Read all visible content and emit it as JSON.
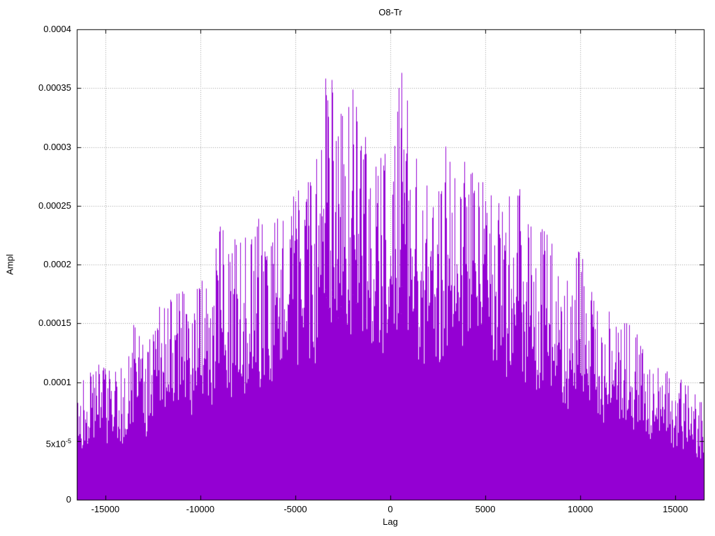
{
  "chart_data": {
    "type": "bar",
    "subtype": "impulses",
    "title": "O8-Tr",
    "xlabel": "Lag",
    "ylabel": "Ampl",
    "xlim": [
      -16500,
      16500
    ],
    "ylim": [
      0,
      0.0004
    ],
    "grid": true,
    "legend": "none",
    "line_color": "#9400D3",
    "grid_color": "#9e9e9e",
    "x_ticks": [
      {
        "value": -15000,
        "label": "-15000"
      },
      {
        "value": -10000,
        "label": "-10000"
      },
      {
        "value": -5000,
        "label": "-5000"
      },
      {
        "value": 0,
        "label": "0"
      },
      {
        "value": 5000,
        "label": "5000"
      },
      {
        "value": 10000,
        "label": "10000"
      },
      {
        "value": 15000,
        "label": "15000"
      }
    ],
    "y_ticks": [
      {
        "value": 0,
        "label": "0"
      },
      {
        "value": 5e-05,
        "label": "5x10",
        "sup": "-5"
      },
      {
        "value": 0.0001,
        "label": "0.0001"
      },
      {
        "value": 0.00015,
        "label": "0.00015"
      },
      {
        "value": 0.0002,
        "label": "0.0002"
      },
      {
        "value": 0.00025,
        "label": "0.00025"
      },
      {
        "value": 0.0003,
        "label": "0.0003"
      },
      {
        "value": 0.00035,
        "label": "0.00035"
      },
      {
        "value": 0.0004,
        "label": "0.0004"
      }
    ],
    "peak": {
      "lag": -3500,
      "ampl": 0.00039
    },
    "envelope": [
      [
        -16500,
        9.5e-05
      ],
      [
        -16000,
        0.000105
      ],
      [
        -15500,
        0.00012
      ],
      [
        -15000,
        0.000115
      ],
      [
        -14500,
        0.00011
      ],
      [
        -14000,
        0.00012
      ],
      [
        -13500,
        0.00015
      ],
      [
        -13000,
        0.00013
      ],
      [
        -12500,
        0.00014
      ],
      [
        -12000,
        0.00018
      ],
      [
        -11500,
        0.00017
      ],
      [
        -11000,
        0.00018
      ],
      [
        -10500,
        0.00016
      ],
      [
        -10000,
        0.00019
      ],
      [
        -9500,
        0.00018
      ],
      [
        -9000,
        0.00024
      ],
      [
        -8500,
        0.00021
      ],
      [
        -8000,
        0.00023
      ],
      [
        -7500,
        0.00022
      ],
      [
        -7000,
        0.00024
      ],
      [
        -6500,
        0.00023
      ],
      [
        -6000,
        0.00026
      ],
      [
        -5500,
        0.00025
      ],
      [
        -5000,
        0.00026
      ],
      [
        -4500,
        0.00027
      ],
      [
        -4000,
        0.00027
      ],
      [
        -3500,
        0.00039
      ],
      [
        -3000,
        0.00035
      ],
      [
        -2500,
        0.00035
      ],
      [
        -2000,
        0.00035
      ],
      [
        -1500,
        0.00031
      ],
      [
        -1000,
        0.00031
      ],
      [
        -500,
        0.00029
      ],
      [
        0,
        0.0003
      ],
      [
        500,
        0.00037
      ],
      [
        1000,
        0.00033
      ],
      [
        1500,
        0.00028
      ],
      [
        2000,
        0.00027
      ],
      [
        2500,
        0.00026
      ],
      [
        3000,
        0.00031
      ],
      [
        3500,
        0.00029
      ],
      [
        4000,
        0.00029
      ],
      [
        4500,
        0.00027
      ],
      [
        5000,
        0.00027
      ],
      [
        5500,
        0.00026
      ],
      [
        6000,
        0.00024
      ],
      [
        6500,
        0.0003
      ],
      [
        7000,
        0.00024
      ],
      [
        7500,
        0.00023
      ],
      [
        8000,
        0.00023
      ],
      [
        8500,
        0.00022
      ],
      [
        9000,
        0.00019
      ],
      [
        9500,
        0.00019
      ],
      [
        10000,
        0.00022
      ],
      [
        10500,
        0.00018
      ],
      [
        11000,
        0.00016
      ],
      [
        11500,
        0.00016
      ],
      [
        12000,
        0.00015
      ],
      [
        12500,
        0.00015
      ],
      [
        13000,
        0.00014
      ],
      [
        13500,
        0.00013
      ],
      [
        14000,
        0.00012
      ],
      [
        14500,
        0.00011
      ],
      [
        15000,
        0.000105
      ],
      [
        15500,
        0.0001
      ],
      [
        16000,
        9e-05
      ],
      [
        16500,
        8e-05
      ]
    ],
    "render": {
      "seed": 1337,
      "dense_min": 0.4,
      "dense_var": 0.3,
      "spike_prob": 0.45,
      "spike_pow": 0.55,
      "full_prob": 0.03
    }
  }
}
